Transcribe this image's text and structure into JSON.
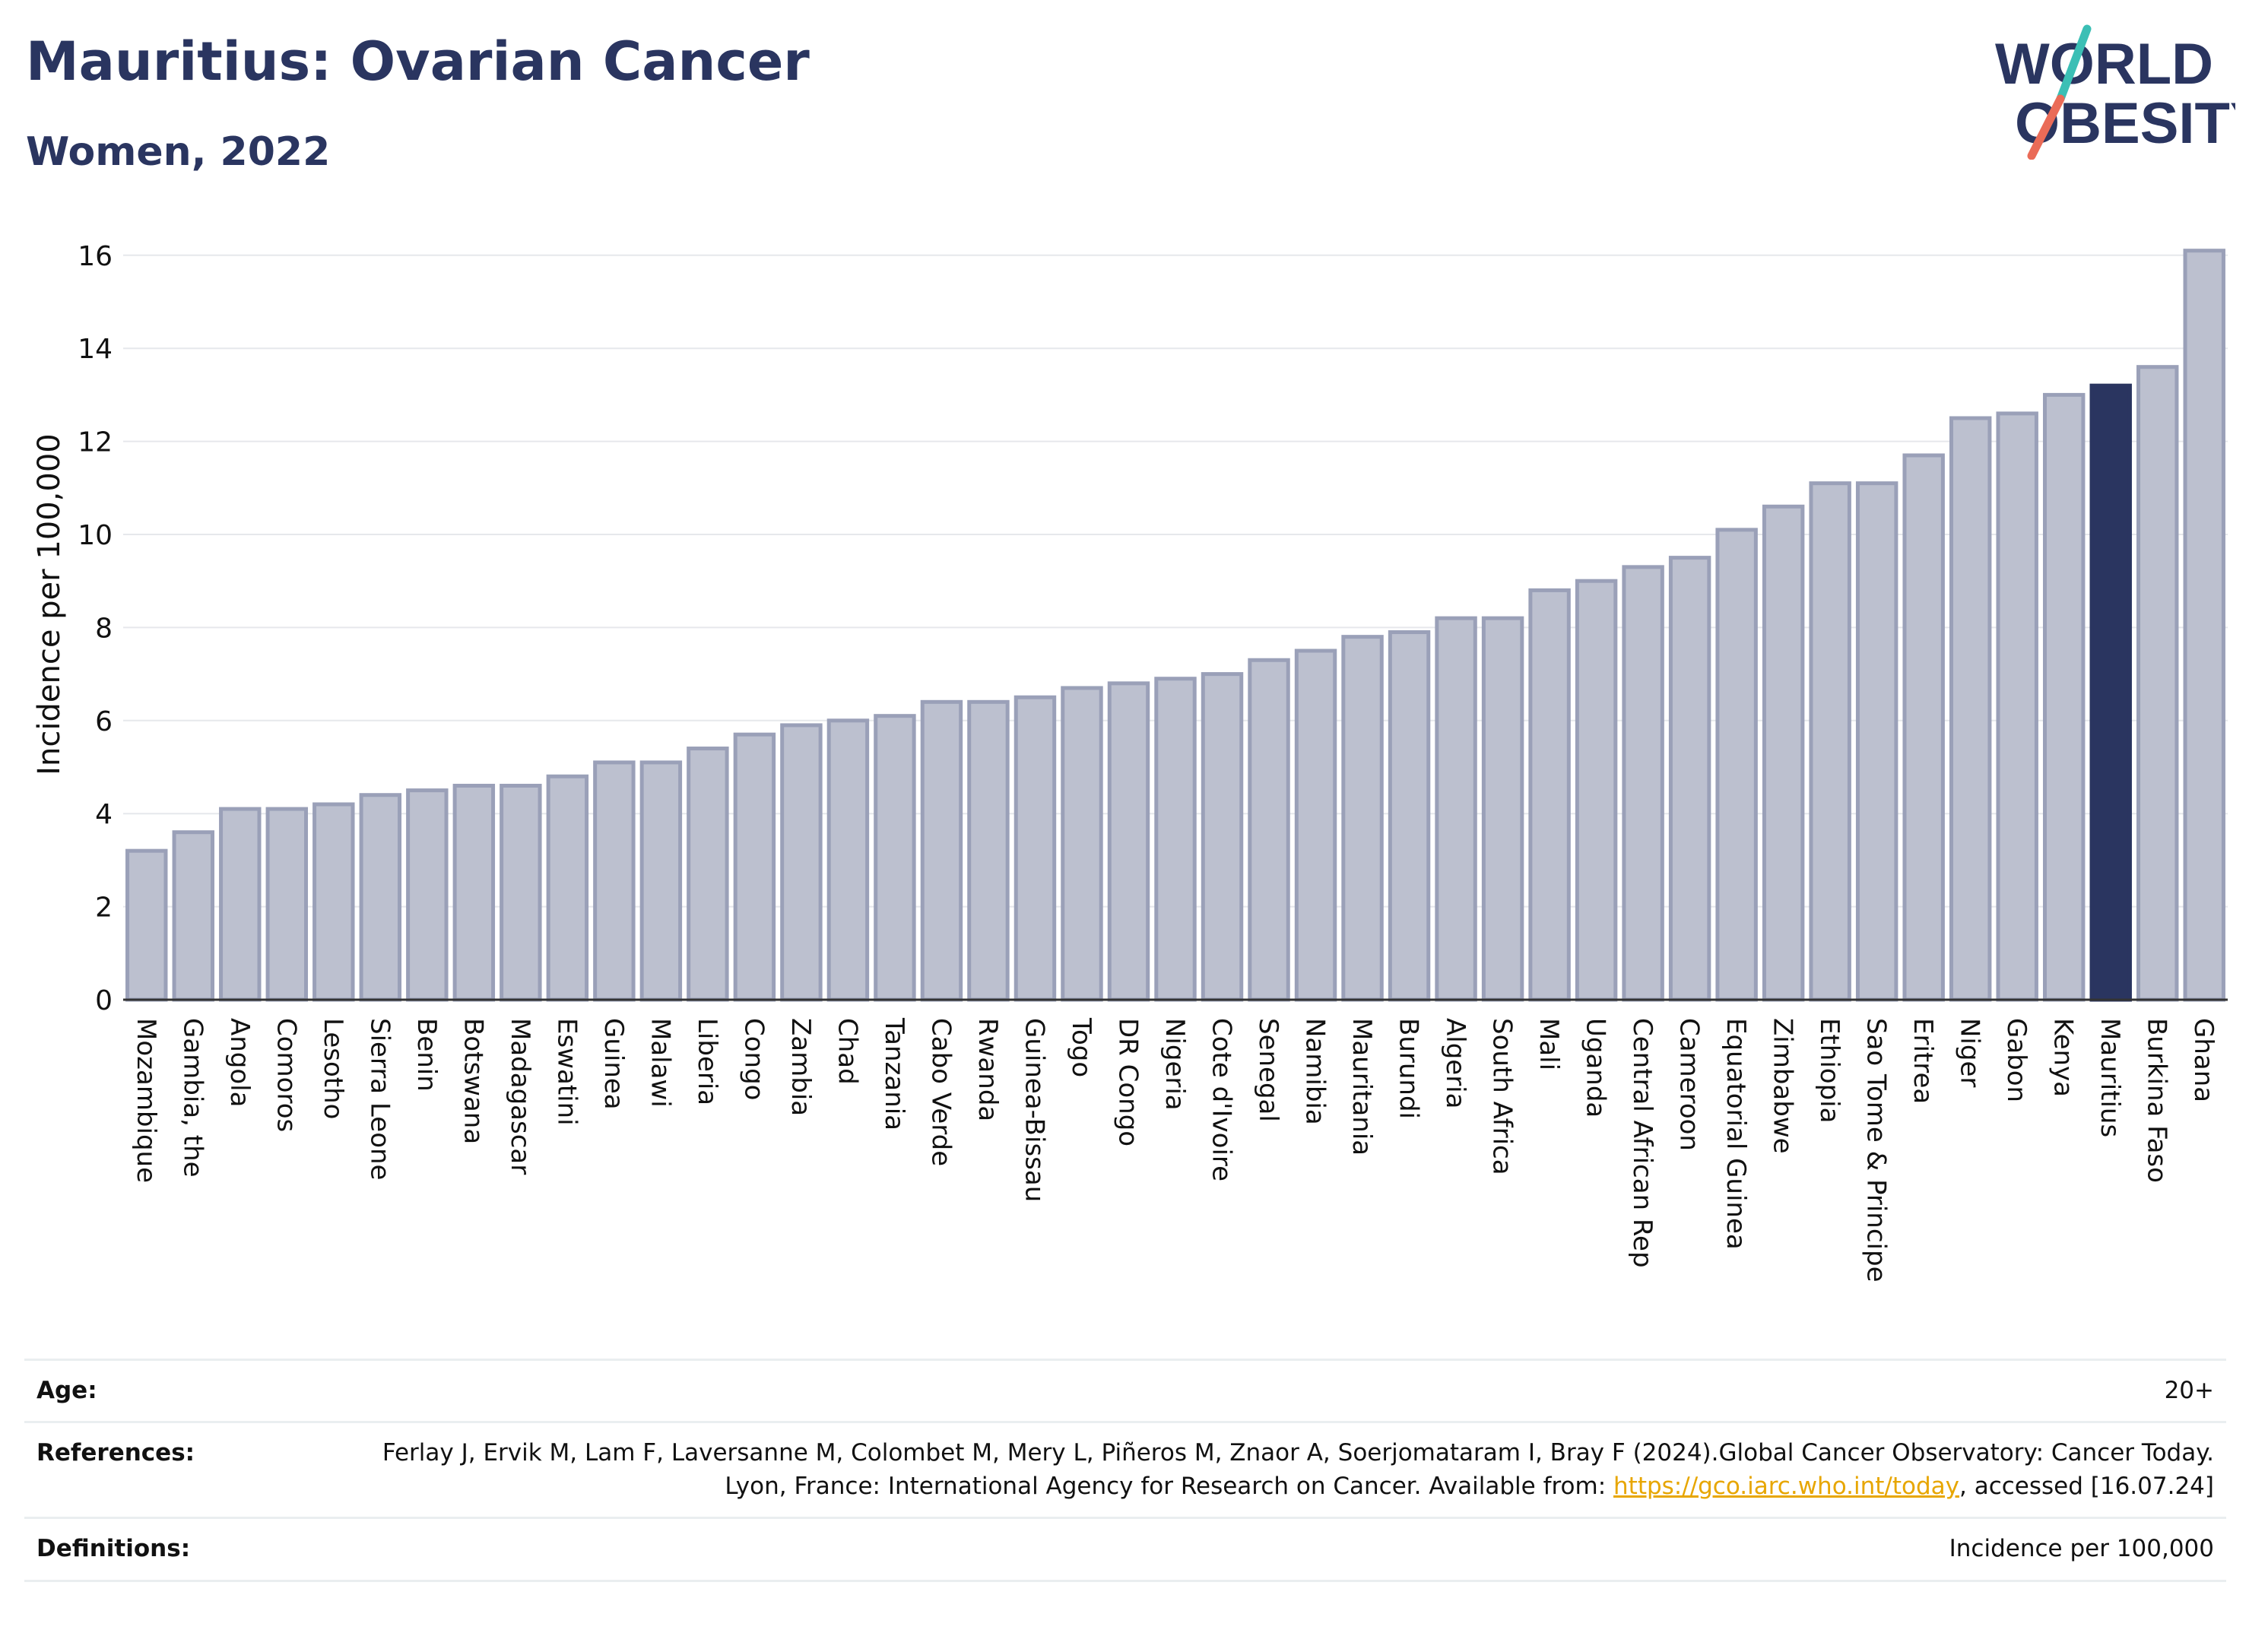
{
  "header": {
    "title": "Mauritius: Ovarian Cancer",
    "subtitle": "Women, 2022"
  },
  "logo": {
    "line1": "WORLD",
    "line2": "OBESITY",
    "colors": {
      "text": "#2a3560",
      "slash_teal": "#3bbfb5",
      "slash_coral": "#ea6b57"
    }
  },
  "chart_data": {
    "type": "bar",
    "ylabel": "Incidence per 100,000",
    "ylim": [
      0,
      16.5
    ],
    "yticks": [
      0,
      2,
      4,
      6,
      8,
      10,
      12,
      14,
      16
    ],
    "grid": true,
    "highlight": "Mauritius",
    "colors": {
      "bar_fill": "#bcc0cf",
      "bar_stroke": "#9aa0b8",
      "highlight": "#2a3560"
    },
    "categories": [
      "Mozambique",
      "Gambia, the",
      "Angola",
      "Comoros",
      "Lesotho",
      "Sierra Leone",
      "Benin",
      "Botswana",
      "Madagascar",
      "Eswatini",
      "Guinea",
      "Malawi",
      "Liberia",
      "Congo",
      "Zambia",
      "Chad",
      "Tanzania",
      "Cabo Verde",
      "Rwanda",
      "Guinea-Bissau",
      "Togo",
      "DR Congo",
      "Nigeria",
      "Cote d'Ivoire",
      "Senegal",
      "Namibia",
      "Mauritania",
      "Burundi",
      "Algeria",
      "South Africa",
      "Mali",
      "Uganda",
      "Central African Rep",
      "Cameroon",
      "Equatorial Guinea",
      "Zimbabwe",
      "Ethiopia",
      "Sao Tome & Principe",
      "Eritrea",
      "Niger",
      "Gabon",
      "Kenya",
      "Mauritius",
      "Burkina Faso",
      "Ghana"
    ],
    "values": [
      3.2,
      3.6,
      4.1,
      4.1,
      4.2,
      4.4,
      4.5,
      4.6,
      4.6,
      4.8,
      5.1,
      5.1,
      5.4,
      5.7,
      5.9,
      6.0,
      6.1,
      6.4,
      6.4,
      6.5,
      6.7,
      6.8,
      6.9,
      7.0,
      7.3,
      7.5,
      7.8,
      7.9,
      8.2,
      8.2,
      8.8,
      9.0,
      9.3,
      9.5,
      10.1,
      10.6,
      11.1,
      11.1,
      11.7,
      12.5,
      12.6,
      13.0,
      13.2,
      13.6,
      16.1
    ]
  },
  "info": {
    "age_label": "Age:",
    "age_value": "20+",
    "references_label": "References:",
    "references_text": "Ferlay J, Ervik M, Lam F, Laversanne M, Colombet M, Mery L, Piñeros M, Znaor A, Soerjomataram I, Bray F (2024).Global Cancer Observatory: Cancer Today. Lyon, France: International Agency for Research on Cancer. Available from:",
    "references_link": "https://gco.iarc.who.int/today",
    "references_suffix": ", accessed [16.07.24]",
    "definitions_label": "Definitions:",
    "definitions_value": "Incidence per 100,000"
  }
}
